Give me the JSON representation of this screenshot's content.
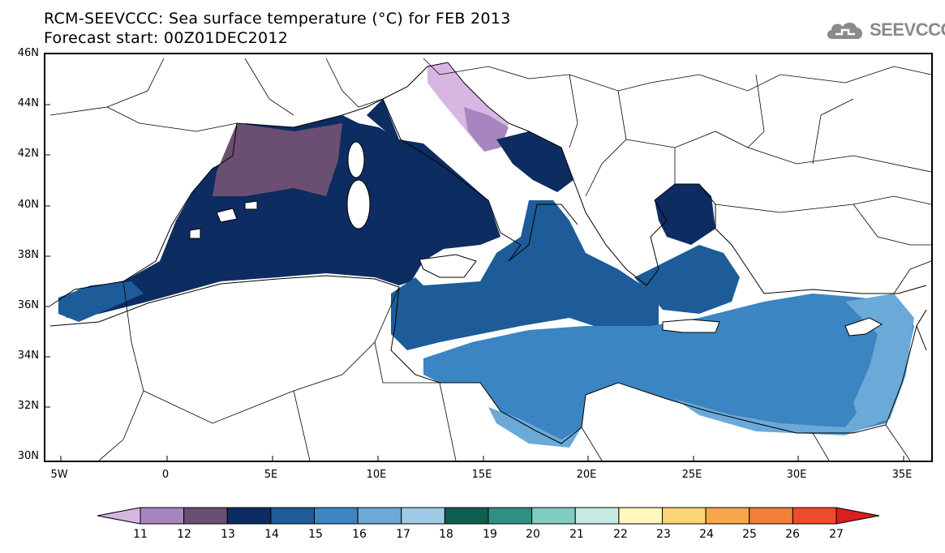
{
  "title": {
    "line1": "RCM-SEEVCCC: Sea surface temperature (°C) for FEB 2013",
    "line2": "Forecast start: 00Z01DEC2012"
  },
  "logo": {
    "text": "SEEVCCC",
    "icon": "cloud-logo-icon"
  },
  "map": {
    "projection": "lat-lon",
    "lon_range": [
      -5.5,
      36.5
    ],
    "lat_range": [
      30,
      46
    ],
    "y_ticks": [
      "46N",
      "44N",
      "42N",
      "40N",
      "38N",
      "36N",
      "34N",
      "32N",
      "30N"
    ],
    "x_ticks": [
      "5W",
      "0",
      "5E",
      "10E",
      "15E",
      "20E",
      "25E",
      "30E",
      "35E"
    ],
    "variable": "Sea surface temperature",
    "units": "°C",
    "region": "Mediterranean Sea"
  },
  "colorbar": {
    "labels": [
      "11",
      "12",
      "13",
      "14",
      "15",
      "16",
      "17",
      "18",
      "19",
      "20",
      "21",
      "22",
      "23",
      "24",
      "25",
      "26",
      "27"
    ],
    "colors": [
      "#d7b7e2",
      "#a785bf",
      "#6a4f72",
      "#0d2c61",
      "#1d5c98",
      "#3b85c2",
      "#6aa9d8",
      "#9fcbe8",
      "#0c5f4f",
      "#2f8f82",
      "#7ecdc0",
      "#c6ebe4",
      "#fff7bd",
      "#fdd474",
      "#f8a54b",
      "#f47f3a",
      "#ee4b2b",
      "#d9201f"
    ]
  }
}
